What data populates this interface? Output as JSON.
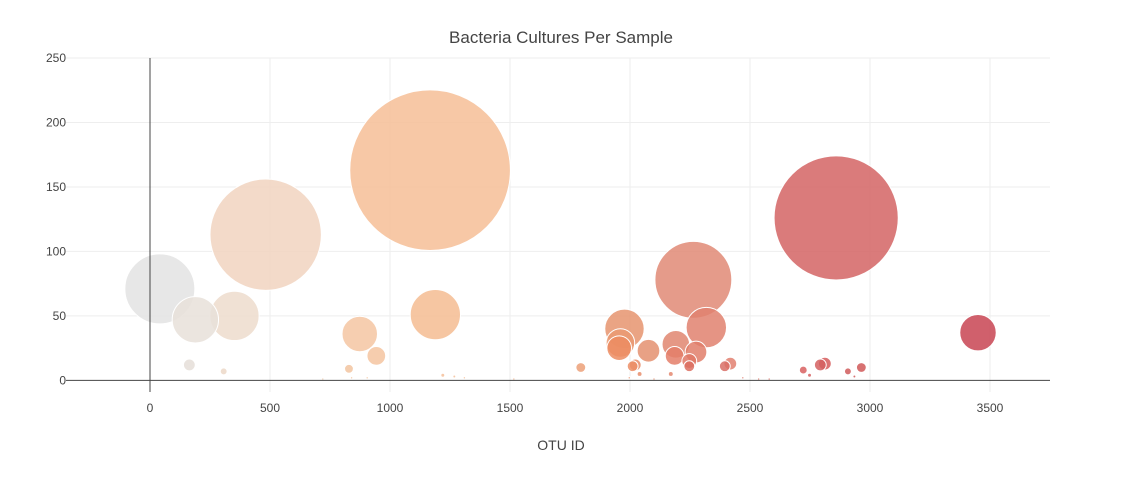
{
  "chart_data": {
    "type": "scatter",
    "title": "Bacteria Cultures Per Sample",
    "xlabel": "OTU ID",
    "ylabel": "",
    "xlim": [
      -350,
      3750
    ],
    "ylim": [
      -9,
      250
    ],
    "xticks": [
      0,
      500,
      1000,
      1500,
      2000,
      2500,
      3000,
      3500
    ],
    "yticks": [
      0,
      50,
      100,
      150,
      200,
      250
    ],
    "grid": true,
    "legend": "none",
    "colorscale": "Earth-like",
    "series": [
      {
        "points": [
          {
            "x": 41,
            "y": 71,
            "size": 71,
            "color": "#e3e3e3"
          },
          {
            "x": 164,
            "y": 12,
            "size": 12,
            "color": "#e5ded8"
          },
          {
            "x": 189,
            "y": 47,
            "size": 47,
            "color": "#e8e0d9"
          },
          {
            "x": 307,
            "y": 7,
            "size": 7,
            "color": "#ecd8c8"
          },
          {
            "x": 352,
            "y": 50,
            "size": 50,
            "color": "#eddccd"
          },
          {
            "x": 482,
            "y": 113,
            "size": 113,
            "color": "#f1d3c0"
          },
          {
            "x": 829,
            "y": 9,
            "size": 9,
            "color": "#f2c4a0"
          },
          {
            "x": 874,
            "y": 36,
            "size": 36,
            "color": "#f4c6a2"
          },
          {
            "x": 943,
            "y": 19,
            "size": 19,
            "color": "#f4c4a0"
          },
          {
            "x": 1167,
            "y": 163,
            "size": 163,
            "color": "#f6be96"
          },
          {
            "x": 1189,
            "y": 51,
            "size": 51,
            "color": "#f4bc92"
          },
          {
            "x": 1795,
            "y": 10,
            "size": 10,
            "color": "#eca078"
          },
          {
            "x": 1977,
            "y": 40,
            "size": 40,
            "color": "#e6946e"
          },
          {
            "x": 1960,
            "y": 29,
            "size": 29,
            "color": "#ea9a72"
          },
          {
            "x": 1955,
            "y": 25,
            "size": 25,
            "color": "#ec8c62"
          },
          {
            "x": 2022,
            "y": 12,
            "size": 12,
            "color": "#e88c68"
          },
          {
            "x": 2011,
            "y": 11,
            "size": 11,
            "color": "#ec8e66"
          },
          {
            "x": 2077,
            "y": 23,
            "size": 23,
            "color": "#e49070"
          },
          {
            "x": 2191,
            "y": 28,
            "size": 28,
            "color": "#e08670"
          },
          {
            "x": 2186,
            "y": 19,
            "size": 19,
            "color": "#e47e68"
          },
          {
            "x": 2264,
            "y": 78,
            "size": 78,
            "color": "#e08a76"
          },
          {
            "x": 2318,
            "y": 41,
            "size": 41,
            "color": "#e0816e"
          },
          {
            "x": 2275,
            "y": 22,
            "size": 22,
            "color": "#e07e6a"
          },
          {
            "x": 2247,
            "y": 15,
            "size": 15,
            "color": "#e07866"
          },
          {
            "x": 2247,
            "y": 11,
            "size": 11,
            "color": "#dc6e60"
          },
          {
            "x": 2418,
            "y": 13,
            "size": 13,
            "color": "#e28070"
          },
          {
            "x": 2395,
            "y": 11,
            "size": 11,
            "color": "#d86e66"
          },
          {
            "x": 2722,
            "y": 8,
            "size": 8,
            "color": "#d86060"
          },
          {
            "x": 2793,
            "y": 12,
            "size": 12,
            "color": "#d46060"
          },
          {
            "x": 2812,
            "y": 13,
            "size": 13,
            "color": "#d65c5c"
          },
          {
            "x": 2859,
            "y": 126,
            "size": 126,
            "color": "#d46464"
          },
          {
            "x": 2908,
            "y": 7,
            "size": 7,
            "color": "#d05c5c"
          },
          {
            "x": 2964,
            "y": 10,
            "size": 10,
            "color": "#d05858"
          },
          {
            "x": 3450,
            "y": 37,
            "size": 37,
            "color": "#c84452"
          },
          {
            "x": 2170,
            "y": 5,
            "size": 5,
            "color": "#e48870"
          },
          {
            "x": 2040,
            "y": 5,
            "size": 5,
            "color": "#e88e6c"
          },
          {
            "x": 1268,
            "y": 3,
            "size": 3,
            "color": "#f4c09a"
          },
          {
            "x": 1310,
            "y": 2,
            "size": 2,
            "color": "#f4c09a"
          },
          {
            "x": 1220,
            "y": 4,
            "size": 4,
            "color": "#f4c09a"
          },
          {
            "x": 2470,
            "y": 2,
            "size": 2,
            "color": "#de7a6c"
          },
          {
            "x": 2536,
            "y": 1,
            "size": 1,
            "color": "#de7a6c"
          },
          {
            "x": 2748,
            "y": 4,
            "size": 4,
            "color": "#d66060"
          },
          {
            "x": 2935,
            "y": 3,
            "size": 3,
            "color": "#d05a5a"
          },
          {
            "x": 1997,
            "y": 2,
            "size": 2,
            "color": "#ea9470"
          },
          {
            "x": 2100,
            "y": 1,
            "size": 1,
            "color": "#e89070"
          },
          {
            "x": 840,
            "y": 2,
            "size": 2,
            "color": "#f2c4a0"
          },
          {
            "x": 905,
            "y": 2,
            "size": 2,
            "color": "#f2c4a0"
          },
          {
            "x": 720,
            "y": 1,
            "size": 1,
            "color": "#f0c8a8"
          },
          {
            "x": 1516,
            "y": 1,
            "size": 1,
            "color": "#f2b48c"
          },
          {
            "x": 2580,
            "y": 1,
            "size": 1,
            "color": "#dc7268"
          }
        ]
      }
    ]
  }
}
